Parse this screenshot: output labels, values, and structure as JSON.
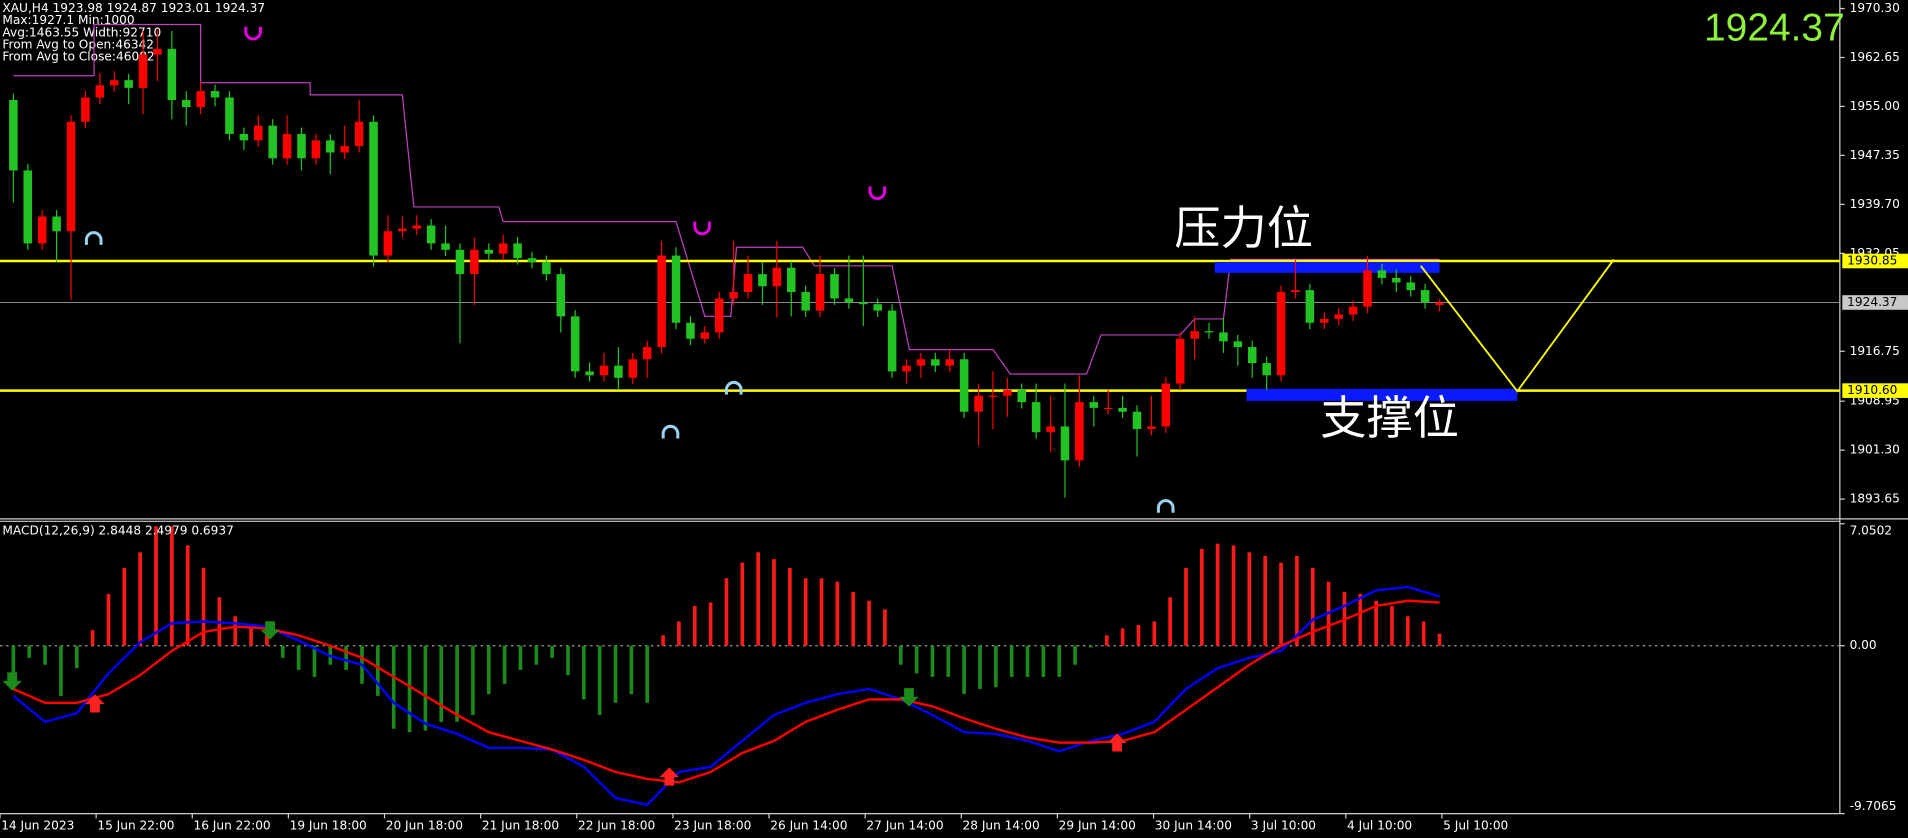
{
  "chart_data": [
    {
      "type": "candlestick",
      "info": [
        "XAU,H4  1923.98 1924.87 1923.01 1924.37",
        "Max:1927.1 Min:1000",
        "Avg:1463.55 Width:92710",
        "From Avg to Open:46342",
        "From Avg to Close:46082"
      ],
      "up_color": "#ff0000",
      "down_color": "#22c322",
      "open": [
        1956.0,
        1945.0,
        1933.6,
        1937.8,
        1935.5,
        1952.6,
        1956.4,
        1958.3,
        1959.1,
        1957.9,
        1963.1,
        1964.0,
        1956.0,
        1954.9,
        1957.4,
        1956.4,
        1950.7,
        1949.7,
        1952.0,
        1946.9,
        1950.7,
        1946.9,
        1949.7,
        1947.8,
        1948.8,
        1952.6,
        1931.7,
        1935.5,
        1935.9,
        1936.4,
        1933.6,
        1932.6,
        1928.8,
        1932.6,
        1932.0,
        1933.6,
        1931.3,
        1930.7,
        1928.8,
        1922.2,
        1913.6,
        1913.0,
        1914.5,
        1912.6,
        1915.5,
        1917.4,
        1931.7,
        1921.2,
        1918.7,
        1919.7,
        1925.0,
        1926.0,
        1928.8,
        1926.9,
        1929.8,
        1926.0,
        1923.1,
        1928.8,
        1925.0,
        1924.4,
        1924.1,
        1923.1,
        1913.6,
        1914.5,
        1915.5,
        1914.5,
        1915.5,
        1907.3,
        1909.8,
        1909.8,
        1910.7,
        1908.8,
        1904.1,
        1905.0,
        1899.7,
        1908.8,
        1907.9,
        1907.9,
        1907.3,
        1904.6,
        1905.0,
        1911.7,
        1918.7,
        1919.9,
        1919.7,
        1918.3,
        1917.4,
        1914.9,
        1913.0,
        1926.0,
        1926.3,
        1921.2,
        1921.8,
        1922.5,
        1923.7,
        1929.4,
        1928.2,
        1927.5,
        1926.3,
        1923.98
      ],
      "high": [
        1957.0,
        1946.0,
        1938.8,
        1938.8,
        1953.6,
        1957.4,
        1960.2,
        1960.5,
        1960.1,
        1966.8,
        1967.0,
        1966.8,
        1957.4,
        1958.9,
        1958.4,
        1957.4,
        1951.7,
        1953.6,
        1953.0,
        1953.6,
        1951.7,
        1950.7,
        1950.7,
        1952.0,
        1956.0,
        1953.6,
        1938.0,
        1937.8,
        1938.0,
        1937.4,
        1936.4,
        1933.6,
        1934.5,
        1933.6,
        1935.0,
        1934.6,
        1932.3,
        1931.7,
        1929.8,
        1923.2,
        1915.0,
        1916.5,
        1917.4,
        1916.5,
        1918.4,
        1934.0,
        1933.0,
        1922.2,
        1920.7,
        1926.0,
        1934.0,
        1931.7,
        1930.7,
        1934.0,
        1930.8,
        1927.0,
        1931.7,
        1929.8,
        1931.7,
        1931.7,
        1925.0,
        1924.1,
        1915.5,
        1916.5,
        1916.5,
        1917.0,
        1916.5,
        1911.7,
        1913.6,
        1912.6,
        1911.7,
        1911.7,
        1909.8,
        1911.7,
        1913.0,
        1909.8,
        1910.7,
        1909.8,
        1908.3,
        1909.8,
        1912.7,
        1919.7,
        1922.2,
        1921.2,
        1922.0,
        1919.3,
        1918.4,
        1915.9,
        1927.0,
        1931.0,
        1927.3,
        1922.8,
        1923.5,
        1924.7,
        1931.7,
        1930.4,
        1929.5,
        1928.5,
        1927.3,
        1924.87
      ],
      "low": [
        1940.0,
        1932.6,
        1932.6,
        1930.7,
        1924.8,
        1951.6,
        1955.4,
        1957.3,
        1955.4,
        1953.8,
        1959.0,
        1953.0,
        1952.0,
        1953.8,
        1955.0,
        1949.7,
        1948.2,
        1948.7,
        1945.9,
        1945.9,
        1945.0,
        1945.9,
        1944.4,
        1946.8,
        1947.8,
        1930.0,
        1930.7,
        1934.5,
        1934.9,
        1932.6,
        1931.6,
        1918.0,
        1924.0,
        1931.0,
        1931.0,
        1930.3,
        1929.7,
        1927.8,
        1919.7,
        1912.6,
        1912.0,
        1912.0,
        1910.7,
        1911.6,
        1912.6,
        1916.4,
        1920.2,
        1917.7,
        1918.0,
        1918.7,
        1924.0,
        1925.0,
        1924.0,
        1922.0,
        1922.2,
        1922.1,
        1922.1,
        1924.0,
        1923.4,
        1920.7,
        1922.1,
        1912.6,
        1911.7,
        1912.6,
        1913.5,
        1913.5,
        1906.3,
        1902.0,
        1904.6,
        1906.5,
        1907.8,
        1903.1,
        1901.0,
        1893.9,
        1898.7,
        1905.0,
        1906.9,
        1906.3,
        1900.3,
        1903.6,
        1904.0,
        1910.7,
        1915.5,
        1918.7,
        1916.5,
        1914.5,
        1912.6,
        1910.7,
        1912.0,
        1925.0,
        1920.2,
        1920.2,
        1920.8,
        1921.5,
        1922.7,
        1927.2,
        1926.0,
        1925.3,
        1923.4,
        1923.01
      ],
      "close": [
        1945.0,
        1933.6,
        1937.8,
        1935.5,
        1952.6,
        1956.4,
        1958.3,
        1959.1,
        1957.9,
        1963.1,
        1964.0,
        1956.0,
        1954.9,
        1957.4,
        1956.4,
        1950.7,
        1949.7,
        1952.0,
        1946.9,
        1950.7,
        1946.9,
        1949.7,
        1947.8,
        1948.8,
        1952.6,
        1931.7,
        1935.5,
        1935.9,
        1936.4,
        1933.6,
        1932.6,
        1928.8,
        1932.6,
        1932.0,
        1933.6,
        1931.3,
        1930.7,
        1928.8,
        1922.2,
        1913.6,
        1913.0,
        1914.5,
        1912.6,
        1915.5,
        1917.4,
        1931.7,
        1921.2,
        1918.7,
        1919.7,
        1925.0,
        1926.0,
        1928.8,
        1926.9,
        1929.8,
        1926.0,
        1923.1,
        1928.8,
        1925.0,
        1924.4,
        1924.1,
        1923.1,
        1913.6,
        1914.5,
        1915.5,
        1914.5,
        1915.5,
        1907.3,
        1909.8,
        1909.8,
        1910.7,
        1908.8,
        1904.1,
        1905.0,
        1899.7,
        1908.8,
        1907.9,
        1907.9,
        1907.3,
        1904.6,
        1905.0,
        1911.7,
        1918.7,
        1919.9,
        1919.7,
        1918.3,
        1917.4,
        1914.9,
        1913.0,
        1926.0,
        1926.3,
        1921.2,
        1921.8,
        1922.5,
        1923.7,
        1929.4,
        1928.2,
        1927.5,
        1926.3,
        1924.4,
        1924.37
      ],
      "ylim": [
        1890.75,
        1971.63
      ],
      "yticks": [
        {
          "value": 1970.3,
          "label": "1970.30"
        },
        1962.65,
        {
          "value": 1955,
          "label": "1955.00"
        },
        1947.35,
        {
          "value": 1939.7,
          "label": "1939.70"
        },
        1932.05,
        1916.75,
        1908.95,
        {
          "value": 1901.3,
          "label": "1901.30"
        },
        1893.65
      ],
      "current_price": 1924.37,
      "hlines": [
        1930.85,
        {
          "value": 1910.6,
          "label": "1910.60"
        }
      ],
      "hline_color": "#ffff00",
      "band": {
        "color": "#c040c0",
        "x": [
          0,
          5.6,
          5.6,
          13,
          13,
          20.6,
          20.6,
          27,
          27.8,
          33.7,
          34,
          46,
          48,
          49.8,
          50.2,
          54.8,
          55.6,
          61,
          62.2,
          68,
          69.2,
          74.5,
          75.5,
          81,
          82,
          84,
          84.5,
          99
        ],
        "values": [
          1959.8,
          1959.8,
          1967.8,
          1967.8,
          1958.7,
          1958.7,
          1956.8,
          1956.8,
          1939.3,
          1939.3,
          1937.0,
          1937.0,
          1922.2,
          1922.2,
          1933.0,
          1933.0,
          1930.1,
          1930.1,
          1917.0,
          1917.0,
          1913.2,
          1913.2,
          1919.3,
          1919.3,
          1921.8,
          1921.8,
          1931.1,
          1931.1
        ]
      },
      "zones": [
        {
          "from": 83.4,
          "to": 99,
          "top": 1930.7,
          "bottom": 1929.0
        },
        {
          "from": 85.6,
          "to": 104.4,
          "top": 1910.9,
          "bottom": 1909.0
        }
      ],
      "zone_color": "#0a1aff",
      "projection": {
        "color": "#ffff00",
        "x": [
          97.7,
          104.4,
          111.1
        ],
        "values": [
          1930.1,
          1910.5,
          1931.1
        ]
      },
      "annotations": [
        "压力位",
        "支撑位"
      ],
      "x_labels": [
        "14 Jun 2023",
        "15 Jun 22:00",
        "16 Jun 22:00",
        "19 Jun 18:00",
        "20 Jun 18:00",
        "21 Jun 18:00",
        "22 Jun 18:00",
        "23 Jun 18:00",
        "26 Jun 14:00",
        "27 Jun 14:00",
        "28 Jun 14:00",
        "29 Jun 14:00",
        "30 Jun 14:00",
        "3 Jul 10:00",
        "4 Jul 10:00",
        "5 Jul 10:00"
      ]
    },
    {
      "type": "macd",
      "label": "MACD(12,26,9) 2.8448 2.4979 0.6937",
      "ylim": [
        -9.7065,
        7.0502
      ],
      "yticks": [
        7.0502,
        {
          "value": 0,
          "label": "0.00"
        },
        -9.7065
      ],
      "histogram": {
        "up_color": "#ff1a1a",
        "down_color": "#1a8a1a",
        "values": [
          -2.5,
          -0.7,
          -1.1,
          -2.9,
          -1.3,
          0.9,
          3.0,
          4.5,
          5.4,
          6.9,
          6.9,
          5.8,
          4.5,
          2.8,
          1.7,
          1.1,
          0.8,
          -0.7,
          -1.4,
          -1.8,
          -1.1,
          -1.4,
          -2.2,
          -2.9,
          -4.8,
          -5.0,
          -4.9,
          -4.4,
          -4.4,
          -4.0,
          -2.8,
          -2.2,
          -1.4,
          -1.1,
          -0.7,
          -1.7,
          -3.1,
          -4.0,
          -3.3,
          -2.8,
          -3.3,
          0.6,
          1.4,
          2.3,
          2.5,
          3.9,
          4.8,
          5.4,
          5.0,
          4.5,
          3.9,
          3.9,
          3.7,
          3.1,
          2.6,
          2.1,
          -1.1,
          -1.6,
          -1.8,
          -1.8,
          -2.8,
          -2.5,
          -2.4,
          -1.8,
          -1.8,
          -1.8,
          -1.8,
          -1.1,
          -0.1,
          0.6,
          1.0,
          1.2,
          1.4,
          2.8,
          4.5,
          5.6,
          5.9,
          5.8,
          5.4,
          5.2,
          4.8,
          5.2,
          4.5,
          3.7,
          3.1,
          3.0,
          2.6,
          2.3,
          1.7,
          1.4,
          0.6937
        ]
      },
      "series": [
        {
          "color": "#0000ff",
          "values": [
            -2.9,
            -4.4,
            -3.9,
            -1.6,
            0.2,
            1.3,
            1.4,
            1.3,
            1.1,
            0.3,
            -0.6,
            -1.1,
            -3.3,
            -4.5,
            -5.1,
            -5.9,
            -5.9,
            -6.0,
            -7.0,
            -8.8,
            -9.2,
            -7.3,
            -7.0,
            -5.5,
            -4.0,
            -3.3,
            -2.8,
            -2.5,
            -3.1,
            -4.0,
            -5.0,
            -5.1,
            -5.5,
            -6.1,
            -5.5,
            -5.1,
            -4.4,
            -2.5,
            -1.3,
            -0.7,
            -0.3,
            1.5,
            2.3,
            3.2,
            3.4,
            2.8448
          ]
        },
        {
          "color": "#ff0000",
          "values": [
            -2.5,
            -3.3,
            -3.3,
            -2.8,
            -1.7,
            -0.3,
            0.8,
            1.1,
            1.0,
            0.6,
            0.0,
            -0.7,
            -1.8,
            -2.9,
            -4.0,
            -5.0,
            -5.5,
            -6.0,
            -6.6,
            -7.3,
            -7.7,
            -7.9,
            -7.3,
            -6.2,
            -5.5,
            -4.4,
            -3.7,
            -3.1,
            -3.1,
            -3.5,
            -4.2,
            -4.8,
            -5.3,
            -5.6,
            -5.6,
            -5.5,
            -5.0,
            -3.7,
            -2.4,
            -1.1,
            0.0,
            0.8,
            1.5,
            2.3,
            2.6,
            2.4979
          ]
        }
      ]
    }
  ]
}
